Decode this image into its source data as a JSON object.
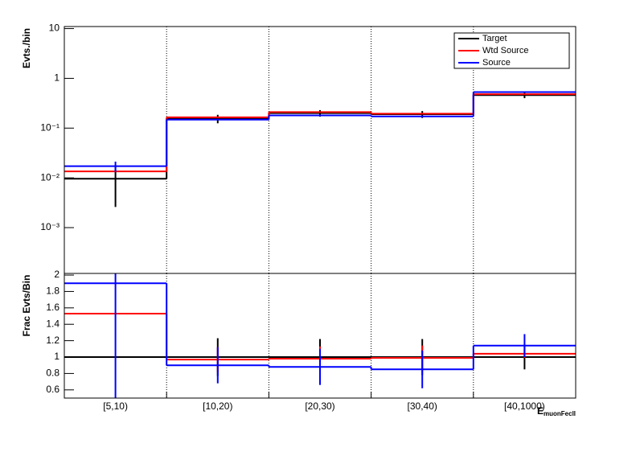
{
  "chart_data": [
    {
      "type": "step",
      "y_label": "Evts./bin",
      "log_y": true,
      "grid_x": true,
      "legend": "upper right",
      "ylim": [
        0.00012,
        11
      ],
      "yticks": [
        {
          "value": 10,
          "label": "10"
        },
        {
          "value": 1,
          "label": "1"
        },
        {
          "value": 0.1,
          "label": "10⁻¹"
        },
        {
          "value": 0.01,
          "label": "10⁻²"
        },
        {
          "value": 0.001,
          "label": "10⁻³"
        }
      ],
      "series": [
        {
          "name": "Target",
          "color": "#000000",
          "values": [
            0.0096,
            0.155,
            0.2,
            0.19,
            0.46
          ],
          "errors": [
            0.007,
            0.03,
            0.03,
            0.03,
            0.06
          ]
        },
        {
          "name": "Wtd Source",
          "color": "#ff0000",
          "values": [
            0.0135,
            0.165,
            0.21,
            0.195,
            0.48
          ],
          "errors": [
            0,
            0,
            0,
            0,
            0
          ]
        },
        {
          "name": "Source",
          "color": "#0000ff",
          "values": [
            0.0172,
            0.148,
            0.18,
            0.172,
            0.53
          ],
          "errors": [
            0.004,
            0,
            0,
            0,
            0
          ]
        }
      ]
    },
    {
      "type": "step",
      "y_label": "Frac Evts/Bin",
      "x_label": "E",
      "x_label_sub": "muonFecll",
      "grid_x": true,
      "categories": [
        "[5,10)",
        "[10,20)",
        "[20,30)",
        "[30,40)",
        "[40,1000)"
      ],
      "ylim": [
        0.5,
        2.02
      ],
      "yticks": [
        0.6,
        0.8,
        1,
        1.2,
        1.4,
        1.6,
        1.8,
        2
      ],
      "series": [
        {
          "color": "#000000",
          "values": [
            1,
            1,
            1,
            1,
            1
          ],
          "errors": [
            0,
            0.23,
            0.22,
            0.22,
            0.15
          ]
        },
        {
          "color": "#ff0000",
          "values": [
            1.53,
            0.97,
            0.98,
            0.99,
            1.04
          ],
          "errors": [
            0,
            0.15,
            0.15,
            0.15,
            0.05
          ]
        },
        {
          "color": "#0000ff",
          "values": [
            1.9,
            0.9,
            0.88,
            0.85,
            1.14
          ],
          "errors": [
            1.5,
            0.22,
            0.22,
            0.23,
            0.14
          ]
        }
      ]
    }
  ]
}
